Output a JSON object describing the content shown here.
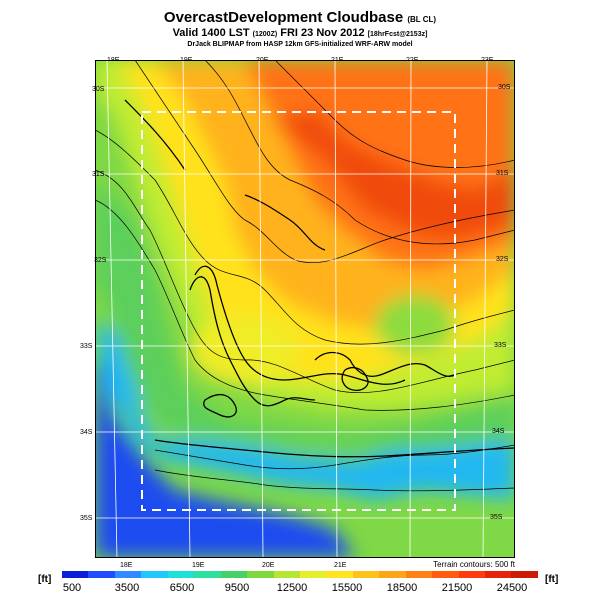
{
  "title": {
    "main": "OvercastDevelopment Cloudbase",
    "main_suffix": "(BL CL)"
  },
  "subtitle": {
    "main": "Valid 1400 LST",
    "code": "(1200Z)",
    "date": "FRI 23 Nov 2012",
    "forecast": "[18hrFcst@2153z]"
  },
  "credit": "DrJack BLIPMAP from HASP 12km GFS-initialized WRF-ARW model",
  "lon_labels_top": [
    "18E",
    "19E",
    "20E",
    "21E",
    "22E",
    "23E"
  ],
  "lon_labels_bottom": [
    "18E",
    "19E",
    "20E",
    "21E"
  ],
  "lat_labels_left": [
    "30S",
    "31S",
    "32S",
    "33S",
    "34S",
    "35S"
  ],
  "lat_labels_right": [
    "30S",
    "31S",
    "32S",
    "33S",
    "34S",
    "35S"
  ],
  "terrain_note": "Terrain contours: 500 ft",
  "units_left": "[ft]",
  "units_right": "[ft]",
  "colorbar_labels": [
    "500",
    "3500",
    "6500",
    "9500",
    "12500",
    "15500",
    "18500",
    "21500",
    "24500"
  ],
  "colorbar_colors": [
    "#0b1fd8",
    "#1f4dff",
    "#2f8bff",
    "#1fc8ff",
    "#1fe0d8",
    "#2de0a0",
    "#45d06a",
    "#7dd83b",
    "#b4e632",
    "#e6f02a",
    "#ffe51e",
    "#ffc21a",
    "#ffa317",
    "#ff8014",
    "#ff5c10",
    "#ff3a0c",
    "#e82208",
    "#cc1a06"
  ],
  "map_colors": {
    "ocean": "#1a4cf0",
    "coast": "#22b8f0",
    "lowland": "#5ccf5c",
    "midland": "#c0ec30",
    "high": "#ffe21a",
    "higher": "#ffb21a",
    "highest": "#ff7214",
    "peak": "#f04c10"
  }
}
